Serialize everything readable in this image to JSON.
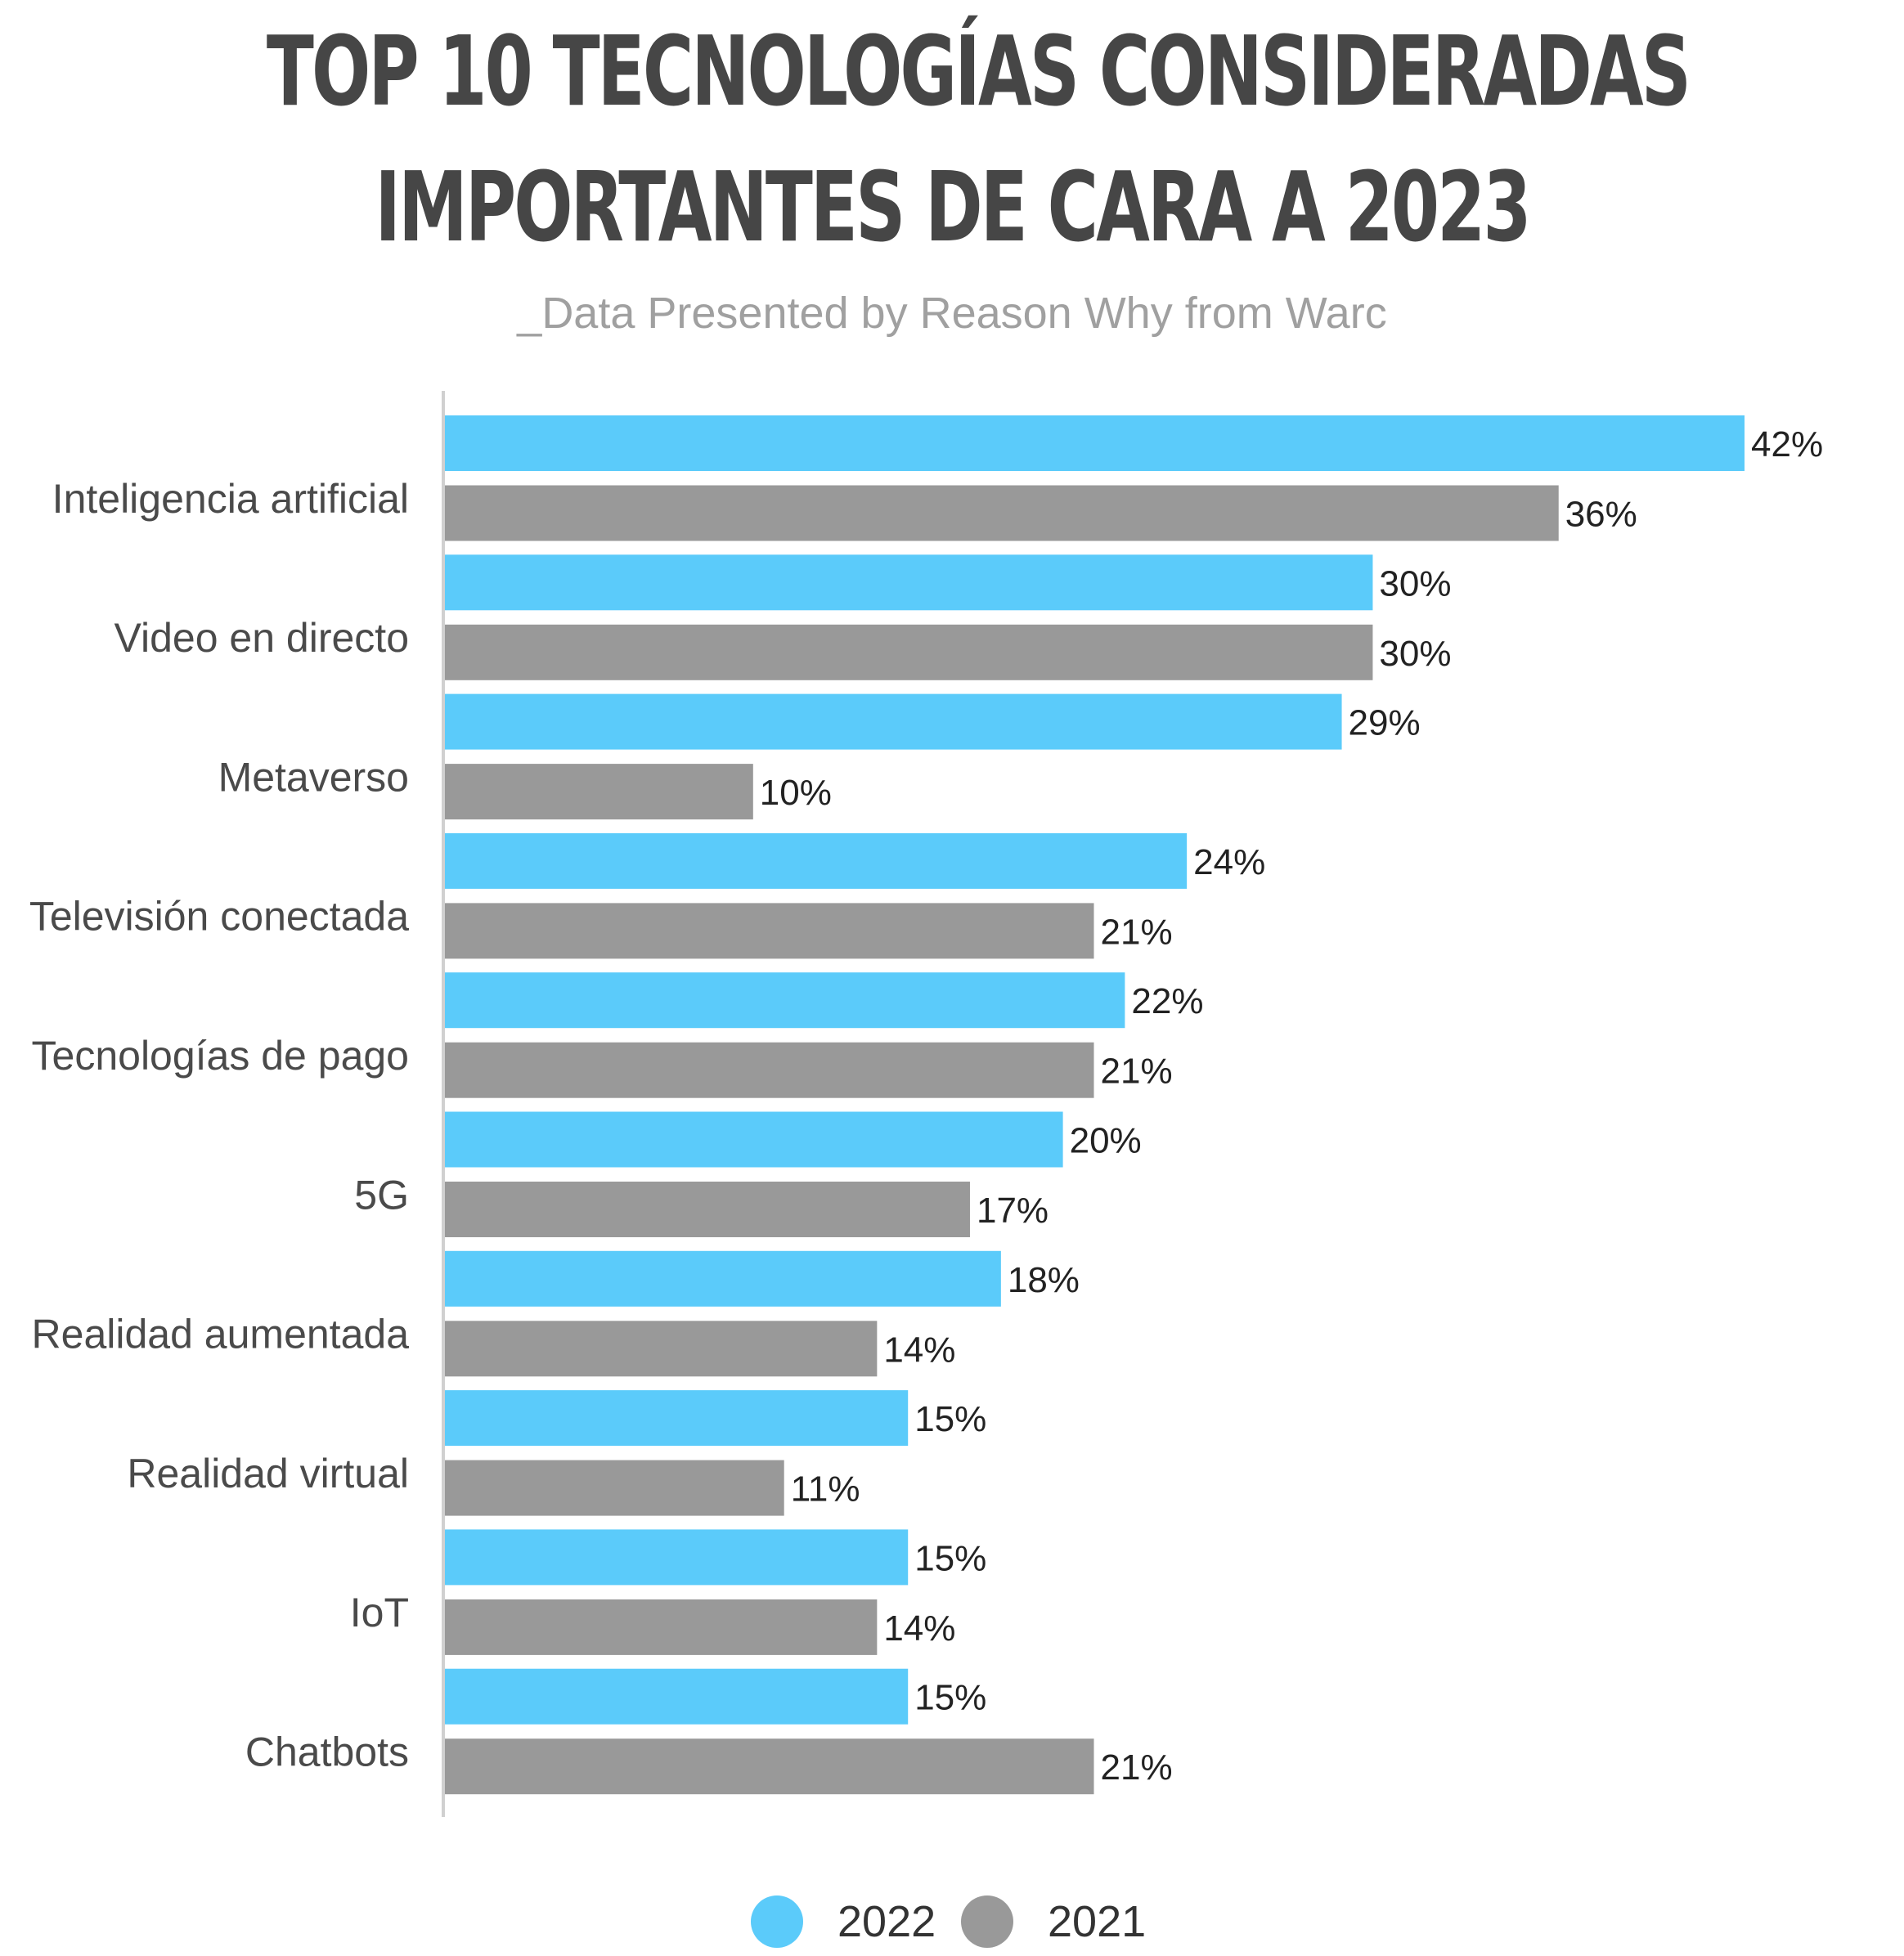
{
  "header": {
    "title_line1": "TOP 10 TECNOLOGÍAS CONSIDERADAS",
    "title_line2": "IMPORTANTES DE CARA A 2023",
    "subtitle": "_Data Presented by Reason Why from Warc"
  },
  "colors": {
    "series_2022": "#5bcbfa",
    "series_2021": "#999999",
    "axis": "#d0d0d0",
    "category_text": "#4a4a4a",
    "value_text": "#222222"
  },
  "chart_data": {
    "type": "bar",
    "orientation": "horizontal",
    "categories": [
      "Inteligencia artificial",
      "Video en directo",
      "Metaverso",
      "Televisión conectada",
      "Tecnologías de pago",
      "5G",
      "Realidad aumentada",
      "Realidad virtual",
      "IoT",
      "Chatbots"
    ],
    "series": [
      {
        "name": "2022",
        "values": [
          42,
          30,
          29,
          24,
          22,
          20,
          18,
          15,
          15,
          15
        ]
      },
      {
        "name": "2021",
        "values": [
          36,
          30,
          10,
          21,
          21,
          17,
          14,
          11,
          14,
          21
        ]
      }
    ],
    "value_suffix": "%",
    "xlim": [
      0,
      42
    ],
    "grid": false,
    "legend_position": "bottom"
  },
  "legend": {
    "items": [
      {
        "label": "2022"
      },
      {
        "label": "2021"
      }
    ]
  }
}
